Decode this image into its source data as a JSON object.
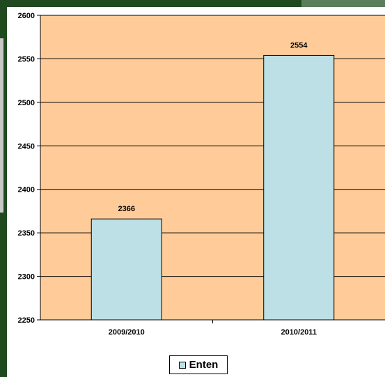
{
  "chart_data": {
    "type": "bar",
    "categories": [
      "2009/2010",
      "2010/2011"
    ],
    "series": [
      {
        "name": "Enten",
        "values": [
          2366,
          2554
        ]
      }
    ],
    "ylim": [
      2250,
      2600
    ],
    "yticks": [
      2250,
      2300,
      2350,
      2400,
      2450,
      2500,
      2550,
      2600
    ],
    "grid": true,
    "legend": "bottom-center",
    "colors": {
      "plot_background": "#FFCC99",
      "bar_fill": "#BCE0E6",
      "page_background": "#1F4A1F"
    }
  }
}
